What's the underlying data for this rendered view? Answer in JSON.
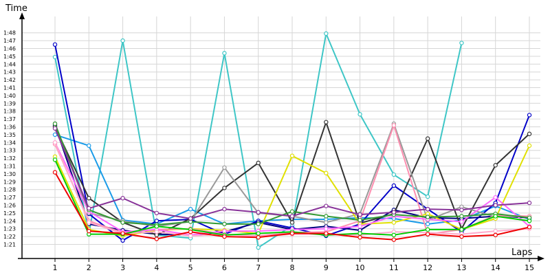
{
  "chart_data": {
    "type": "line",
    "title": "",
    "xlabel": "Laps",
    "ylabel": "Time",
    "x": [
      1,
      2,
      3,
      4,
      5,
      6,
      7,
      8,
      9,
      10,
      11,
      12,
      13,
      14,
      15
    ],
    "y_ticks": [
      "1:21",
      "1:22",
      "1:23",
      "1:24",
      "1:25",
      "1:26",
      "1:27",
      "1:28",
      "1:29",
      "1:30",
      "1:31",
      "1:32",
      "1:33",
      "1:34",
      "1:35",
      "1:36",
      "1:37",
      "1:38",
      "1:39",
      "1:40",
      "1:41",
      "1:42",
      "1:43",
      "1:44",
      "1:45",
      "1:46",
      "1:47",
      "1:48"
    ],
    "ylim_seconds": [
      80,
      108
    ],
    "grid": true,
    "legend": "none",
    "series": [
      {
        "color": "#3ec6c6",
        "values": [
          104.9,
          82.3,
          107.0,
          82.2,
          81.8,
          105.4,
          80.6,
          83.4,
          107.9,
          97.6,
          89.9,
          87.1,
          106.7,
          null,
          null
        ]
      },
      {
        "color": "#1a9be8",
        "values": [
          95.0,
          93.6,
          84.1,
          83.6,
          85.5,
          83.6,
          84.0,
          84.2,
          84.2,
          84.4,
          84.3,
          83.6,
          84.1,
          85.9,
          84.2
        ]
      },
      {
        "color": "#0000c8",
        "values": [
          106.5,
          84.9,
          81.5,
          84.0,
          84.2,
          82.3,
          84.0,
          83.1,
          82.1,
          83.6,
          88.5,
          85.5,
          82.6,
          86.3,
          97.5
        ]
      },
      {
        "color": "#000080",
        "values": [
          96.2,
          83.6,
          82.8,
          82.3,
          82.2,
          82.6,
          83.8,
          82.9,
          83.3,
          82.8,
          85.4,
          84.4,
          84.3,
          84.6,
          84.4
        ]
      },
      {
        "color": "#333333",
        "values": [
          96.0,
          86.9,
          83.8,
          82.2,
          84.3,
          88.2,
          91.4,
          83.8,
          96.6,
          83.7,
          84.9,
          94.5,
          83.0,
          91.1,
          95.1
        ]
      },
      {
        "color": "#999999",
        "values": [
          96.4,
          85.0,
          84.0,
          83.3,
          83.9,
          90.8,
          85.0,
          84.6,
          83.8,
          84.9,
          96.4,
          84.1,
          85.8,
          84.5,
          84.6
        ]
      },
      {
        "color": "#e0e000",
        "values": [
          92.2,
          82.9,
          82.1,
          82.8,
          83.0,
          82.8,
          82.4,
          92.3,
          90.1,
          83.6,
          83.8,
          84.9,
          82.9,
          84.3,
          93.6
        ]
      },
      {
        "color": "#ff8fb0",
        "values": [
          93.8,
          84.0,
          82.5,
          82.9,
          83.0,
          82.3,
          82.1,
          82.5,
          82.6,
          84.0,
          96.2,
          82.3,
          82.9,
          84.7,
          84.6
        ]
      },
      {
        "color": "#ff66ff",
        "values": [
          94.0,
          85.2,
          82.6,
          82.9,
          82.2,
          82.7,
          82.7,
          82.9,
          83.0,
          83.3,
          84.6,
          84.2,
          83.9,
          87.0,
          83.3
        ]
      },
      {
        "color": "#ffaacc",
        "values": [
          94.0,
          83.8,
          82.4,
          82.6,
          82.1,
          82.3,
          82.0,
          82.3,
          82.3,
          82.2,
          82.6,
          82.5,
          82.3,
          82.7,
          83.0
        ]
      },
      {
        "color": "#339933",
        "values": [
          96.4,
          85.4,
          83.8,
          83.5,
          83.9,
          83.6,
          83.6,
          85.2,
          84.6,
          84.1,
          84.8,
          84.5,
          84.6,
          84.9,
          84.4
        ]
      },
      {
        "color": "#00cc00",
        "values": [
          91.8,
          82.3,
          82.3,
          83.3,
          82.9,
          82.2,
          82.4,
          82.6,
          82.2,
          82.4,
          82.2,
          82.9,
          82.9,
          84.6,
          84.0
        ]
      },
      {
        "color": "#ee0000",
        "values": [
          90.2,
          82.7,
          82.4,
          81.7,
          82.6,
          82.0,
          81.9,
          82.4,
          82.4,
          81.9,
          81.6,
          82.3,
          82.0,
          82.2,
          83.2
        ]
      },
      {
        "color": "#883399",
        "values": [
          95.8,
          85.6,
          86.9,
          85.0,
          84.3,
          85.5,
          85.1,
          84.6,
          85.9,
          84.8,
          85.1,
          85.5,
          85.4,
          86.0,
          86.3
        ]
      }
    ]
  }
}
